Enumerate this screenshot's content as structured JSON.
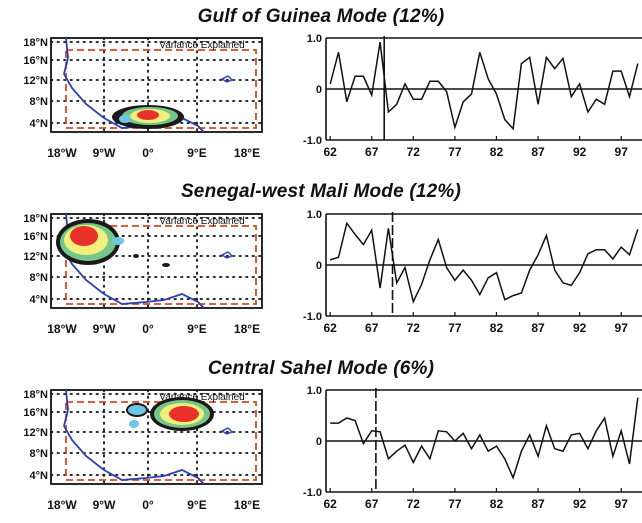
{
  "chart_data": [
    {
      "type": "line",
      "title": "Gulf of Guinea Mode (12%)",
      "map_label": "Variance Explained",
      "map_lat_ticks": [
        "18°N",
        "16°N",
        "12°N",
        "8°N",
        "4°N"
      ],
      "map_lon_ticks": [
        "18°W",
        "9°W",
        "0°",
        "9°E",
        "18°E"
      ],
      "x_tick_labels": [
        "62",
        "67",
        "72",
        "77",
        "82",
        "87",
        "92",
        "97"
      ],
      "x_ticks": [
        62,
        67,
        72,
        77,
        82,
        87,
        92,
        97
      ],
      "y_tick_labels": [
        "1.0",
        "0",
        "-1.0"
      ],
      "y_ticks": [
        1.0,
        0,
        -1.0
      ],
      "xlim": [
        61.5,
        99.5
      ],
      "ylim": [
        -1.0,
        1.0
      ],
      "break_year": 68.5,
      "x": [
        62,
        63,
        64,
        65,
        66,
        67,
        68,
        69,
        70,
        71,
        72,
        73,
        74,
        75,
        76,
        77,
        78,
        79,
        80,
        81,
        82,
        83,
        84,
        85,
        86,
        87,
        88,
        89,
        90,
        91,
        92,
        93,
        94,
        95,
        96,
        97,
        98,
        99
      ],
      "series": [
        {
          "values": [
            0.1,
            0.72,
            -0.25,
            0.25,
            0.25,
            -0.12,
            0.92,
            -0.45,
            -0.3,
            0.1,
            -0.2,
            -0.2,
            0.15,
            0.15,
            -0.05,
            -0.75,
            -0.25,
            -0.1,
            0.72,
            0.2,
            -0.1,
            -0.6,
            -0.78,
            0.5,
            0.62,
            -0.3,
            0.62,
            0.4,
            0.6,
            -0.15,
            0.1,
            -0.45,
            -0.2,
            -0.3,
            0.35,
            0.35,
            -0.15,
            0.5
          ]
        }
      ]
    },
    {
      "type": "line",
      "title": "Senegal-west Mali Mode (12%)",
      "map_label": "Variance Explained",
      "map_lat_ticks": [
        "18°N",
        "16°N",
        "12°N",
        "8°N",
        "4°N"
      ],
      "map_lon_ticks": [
        "18°W",
        "9°W",
        "0°",
        "9°E",
        "18°E"
      ],
      "x_tick_labels": [
        "62",
        "67",
        "72",
        "77",
        "82",
        "87",
        "92",
        "97"
      ],
      "x_ticks": [
        62,
        67,
        72,
        77,
        82,
        87,
        92,
        97
      ],
      "y_tick_labels": [
        "1.0",
        "0",
        "-1.0"
      ],
      "y_ticks": [
        1.0,
        0,
        -1.0
      ],
      "xlim": [
        61.5,
        99.5
      ],
      "ylim": [
        -1.0,
        1.0
      ],
      "break_year": 69.5,
      "x": [
        62,
        63,
        64,
        65,
        66,
        67,
        68,
        69,
        70,
        71,
        72,
        73,
        74,
        75,
        76,
        77,
        78,
        79,
        80,
        81,
        82,
        83,
        84,
        85,
        86,
        87,
        88,
        89,
        90,
        91,
        92,
        93,
        94,
        95,
        96,
        97,
        98,
        99
      ],
      "series": [
        {
          "values": [
            0.1,
            0.15,
            0.82,
            0.6,
            0.4,
            0.68,
            -0.45,
            0.72,
            -0.35,
            -0.05,
            -0.72,
            -0.38,
            0.1,
            0.5,
            -0.05,
            -0.3,
            -0.1,
            -0.3,
            -0.58,
            -0.25,
            -0.15,
            -0.68,
            -0.6,
            -0.55,
            -0.1,
            0.2,
            0.58,
            -0.1,
            -0.35,
            -0.4,
            -0.15,
            0.22,
            0.3,
            0.3,
            0.12,
            0.35,
            0.2,
            0.7
          ]
        }
      ]
    },
    {
      "type": "line",
      "title": "Central Sahel Mode (6%)",
      "map_label": "Variance Explained",
      "map_lat_ticks": [
        "18°N",
        "16°N",
        "12°N",
        "8°N",
        "4°N"
      ],
      "map_lon_ticks": [
        "18°W",
        "9°W",
        "0°",
        "9°E",
        "18°E"
      ],
      "x_tick_labels": [
        "62",
        "67",
        "72",
        "77",
        "82",
        "87",
        "92",
        "97"
      ],
      "x_ticks": [
        62,
        67,
        72,
        77,
        82,
        87,
        92,
        97
      ],
      "y_tick_labels": [
        "1.0",
        "0",
        "-1.0"
      ],
      "y_ticks": [
        1.0,
        0,
        -1.0
      ],
      "xlim": [
        61.5,
        99.5
      ],
      "ylim": [
        -1.0,
        1.0
      ],
      "break_year": 67.5,
      "x": [
        62,
        63,
        64,
        65,
        66,
        67,
        68,
        69,
        70,
        71,
        72,
        73,
        74,
        75,
        76,
        77,
        78,
        79,
        80,
        81,
        82,
        83,
        84,
        85,
        86,
        87,
        88,
        89,
        90,
        91,
        92,
        93,
        94,
        95,
        96,
        97,
        98,
        99
      ],
      "series": [
        {
          "values": [
            0.35,
            0.35,
            0.45,
            0.4,
            -0.05,
            0.2,
            0.18,
            -0.35,
            -0.2,
            -0.08,
            -0.42,
            -0.1,
            -0.35,
            0.2,
            0.18,
            0.0,
            0.15,
            -0.15,
            0.12,
            -0.2,
            -0.1,
            -0.35,
            -0.72,
            -0.2,
            0.12,
            -0.3,
            0.3,
            -0.15,
            -0.2,
            0.12,
            0.15,
            -0.15,
            0.2,
            0.45,
            -0.3,
            0.2,
            -0.45,
            0.85
          ]
        }
      ]
    }
  ]
}
